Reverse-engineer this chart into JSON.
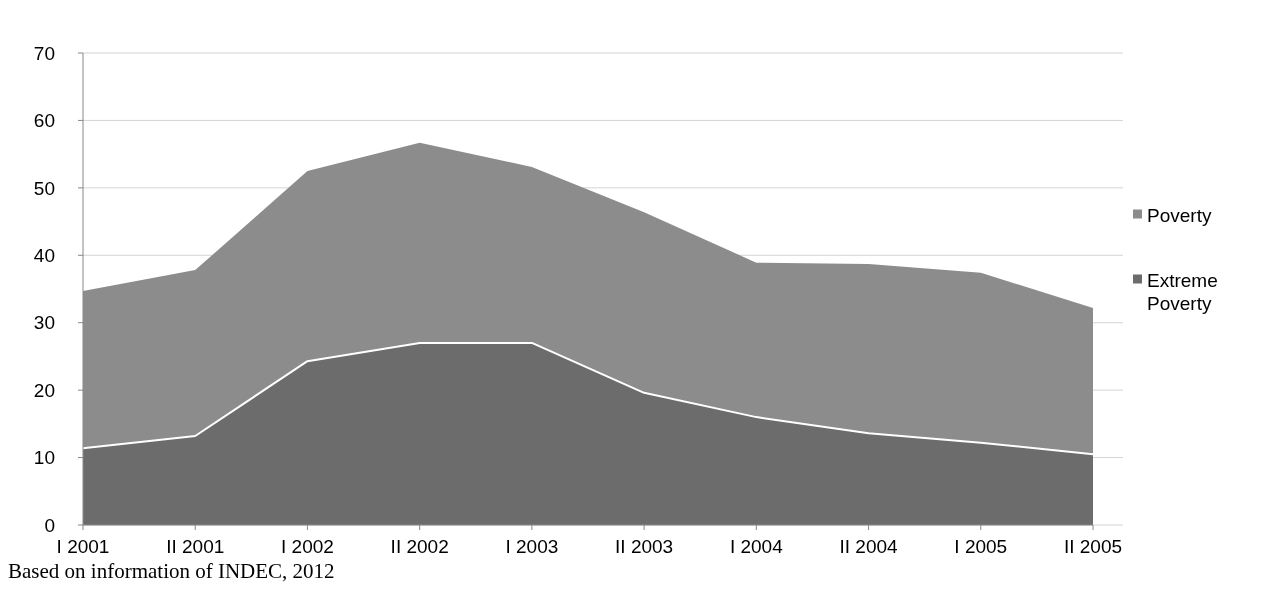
{
  "chart_data": {
    "type": "area",
    "categories": [
      "I 2001",
      "II 2001",
      "I 2002",
      "II 2002",
      "I 2003",
      "II 2003",
      "I 2004",
      "II 2004",
      "I 2005",
      "II 2005"
    ],
    "series": [
      {
        "name": "Poverty",
        "color": "#8c8c8c",
        "values": [
          34.7,
          37.8,
          52.5,
          56.7,
          53.1,
          46.4,
          38.9,
          38.7,
          37.4,
          32.2
        ]
      },
      {
        "name": "Extreme Poverty",
        "color": "#6c6c6c",
        "values": [
          11.4,
          13.2,
          24.3,
          27.0,
          27.0,
          19.6,
          16.0,
          13.6,
          12.2,
          10.5
        ]
      }
    ],
    "ylim": [
      0,
      70
    ],
    "yticks": [
      0,
      10,
      20,
      30,
      40,
      50,
      60,
      70
    ],
    "grid": "y",
    "legend": "right",
    "annotations": [
      "Based on information of INDEC, 2012"
    ]
  }
}
